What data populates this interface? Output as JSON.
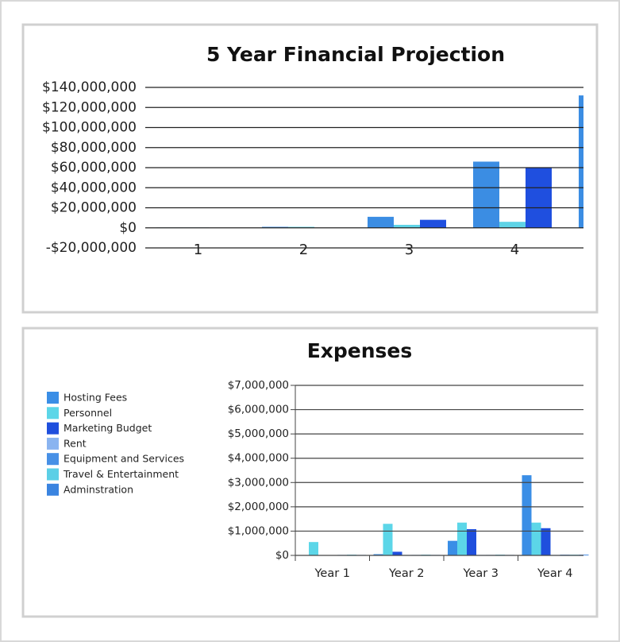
{
  "chart_data": [
    {
      "type": "bar",
      "title": "5 Year Financial Projection",
      "categories": [
        "1",
        "2",
        "3",
        "4",
        null
      ],
      "series": [
        {
          "color": "#3b8de3",
          "values": [
            300000,
            1000000,
            11000000,
            66000000,
            132000000
          ]
        },
        {
          "color": "#5ed3e6",
          "values": [
            300000,
            1000000,
            3000000,
            6000000,
            null
          ]
        },
        {
          "color": "#1f4fdf",
          "values": [
            200000,
            0,
            8000000,
            60000000,
            null
          ]
        }
      ],
      "ylim": [
        -20000000,
        140000000
      ],
      "yticks": [
        {
          "value": -20000000,
          "label": "-$20,000,000"
        },
        {
          "value": 0,
          "label": "$0"
        },
        {
          "value": 20000000,
          "label": "$20,000,000"
        },
        {
          "value": 40000000,
          "label": "$40,000,000"
        },
        {
          "value": 60000000,
          "label": "$60,000,000"
        },
        {
          "value": 80000000,
          "label": "$80,000,000"
        },
        {
          "value": 100000000,
          "label": "$100,000,000"
        },
        {
          "value": 120000000,
          "label": "$120,000,000"
        },
        {
          "value": 140000000,
          "label": "$140,000,000"
        }
      ],
      "grid": true
    },
    {
      "type": "bar",
      "title": "Expenses",
      "categories": [
        "Year 1",
        "Year 2",
        "Year 3",
        "Year 4"
      ],
      "series": [
        {
          "name": "Hosting Fees",
          "color": "#3a8ee6",
          "values": [
            0,
            50000,
            600000,
            3300000
          ]
        },
        {
          "name": "Personnel",
          "color": "#5cd6e8",
          "values": [
            550000,
            1300000,
            1350000,
            1350000
          ]
        },
        {
          "name": "Marketing Budget",
          "color": "#1f4fdd",
          "values": [
            0,
            150000,
            1080000,
            1120000
          ]
        },
        {
          "name": "Rent",
          "color": "#8ab4f0",
          "values": [
            0,
            20000,
            20000,
            20000
          ]
        },
        {
          "name": "Equipment and Services",
          "color": "#4790e6",
          "values": [
            20000,
            20000,
            20000,
            30000
          ]
        },
        {
          "name": "Travel & Entertainment",
          "color": "#5ccfe6",
          "values": [
            30000,
            30000,
            30000,
            30000
          ]
        },
        {
          "name": "Adminstration",
          "color": "#3a84e0",
          "values": [
            20000,
            20000,
            20000,
            30000
          ]
        }
      ],
      "ylim": [
        0,
        7000000
      ],
      "yticks": [
        {
          "value": 0,
          "label": "$0"
        },
        {
          "value": 1000000,
          "label": "$1,000,000"
        },
        {
          "value": 2000000,
          "label": "$2,000,000"
        },
        {
          "value": 3000000,
          "label": "$3,000,000"
        },
        {
          "value": 4000000,
          "label": "$4,000,000"
        },
        {
          "value": 5000000,
          "label": "$5,000,000"
        },
        {
          "value": 6000000,
          "label": "$6,000,000"
        },
        {
          "value": 7000000,
          "label": "$7,000,000"
        }
      ],
      "grid": true,
      "legend": "left"
    }
  ]
}
